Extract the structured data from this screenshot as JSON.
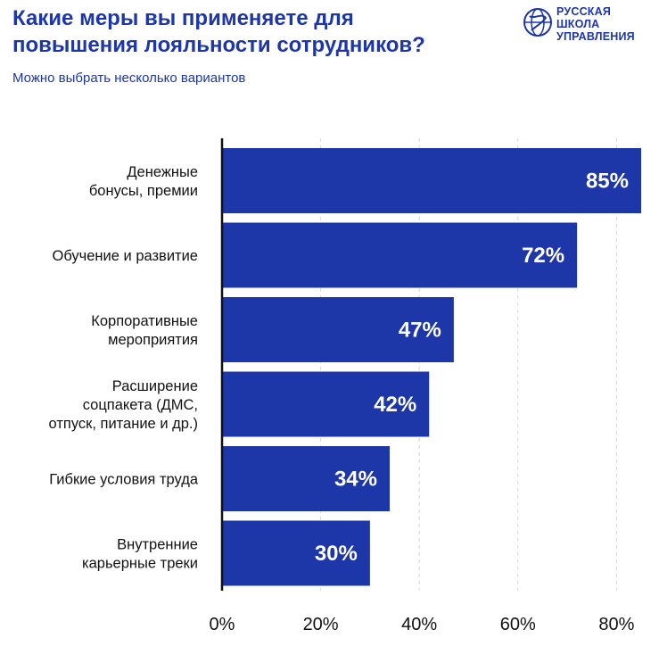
{
  "header": {
    "title": "Какие меры вы применяете для\nповышения лояльности сотрудников?",
    "subtitle": "Можно выбрать несколько вариантов"
  },
  "logo": {
    "text": "РУССКАЯ\nШКОЛА\nУПРАВЛЕНИЯ",
    "icon": "globe-emblem-icon"
  },
  "colors": {
    "bar": "#1d36a8",
    "title": "#1d36a8",
    "grid": "#d8d8d8",
    "axis": "#111111"
  },
  "chart_data": {
    "type": "bar",
    "orientation": "horizontal",
    "categories": [
      "Денежные\nбонусы, премии",
      "Обучение и развитие",
      "Корпоративные\nмероприятия",
      "Расширение\nсоцпакета (ДМС,\nотпуск, питание и др.)",
      "Гибкие условия труда",
      "Внутренние\nкарьерные треки"
    ],
    "values": [
      85,
      72,
      47,
      42,
      34,
      30
    ],
    "data_labels": [
      "85%",
      "72%",
      "47%",
      "42%",
      "34%",
      "30%"
    ],
    "xlim": [
      0,
      85
    ],
    "x_ticks": [
      0,
      20,
      40,
      60,
      80
    ],
    "x_tick_labels": [
      "0%",
      "20%",
      "40%",
      "60%",
      "80%"
    ],
    "grid": "vertical dashed",
    "legend": "none"
  }
}
